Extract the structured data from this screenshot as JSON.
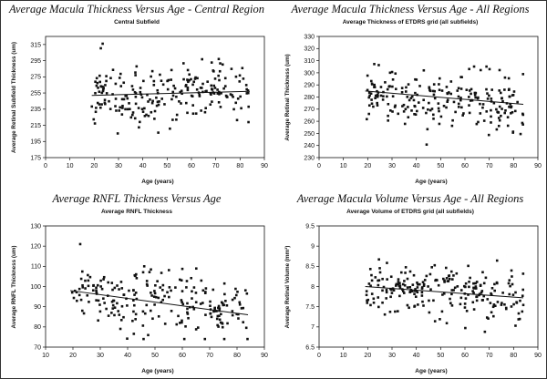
{
  "chart_data": [
    {
      "type": "scatter",
      "title": "Average Macula Thickness Versus Age - Central Region",
      "subtitle": "Central Subfield",
      "xlabel": "Age (years)",
      "ylabel": "Average Retinal Subfield Thickness (um)",
      "xlim": [
        0,
        90
      ],
      "ylim": [
        175,
        325
      ],
      "xticks": [
        "0",
        "10",
        "20",
        "30",
        "40",
        "50",
        "60",
        "70",
        "80",
        "90"
      ],
      "yticks": [
        "175",
        "195",
        "215",
        "235",
        "255",
        "275",
        "295",
        "315"
      ],
      "trend": {
        "x": [
          19,
          84
        ],
        "y": [
          252,
          257
        ]
      },
      "seed": 11,
      "n": 230,
      "spread": 19,
      "ymin": 200,
      "ymax": 316
    },
    {
      "type": "scatter",
      "title": "Average Macula Thickness Versus Age - All Regions",
      "subtitle": "Average Thickness of ETDRS grid (all subfields)",
      "xlabel": "Age (years)",
      "ylabel": "Average Retinal Thickness (um)",
      "xlim": [
        0,
        90
      ],
      "ylim": [
        230,
        330
      ],
      "xticks": [
        "0",
        "10",
        "20",
        "30",
        "40",
        "50",
        "60",
        "70",
        "80",
        "90"
      ],
      "yticks": [
        "230",
        "240",
        "250",
        "260",
        "270",
        "280",
        "290",
        "300",
        "310",
        "320",
        "330"
      ],
      "trend": {
        "x": [
          19,
          84
        ],
        "y": [
          285,
          274
        ]
      },
      "seed": 23,
      "n": 230,
      "spread": 11,
      "ymin": 240,
      "ymax": 314
    },
    {
      "type": "scatter",
      "title": "Average RNFL Thickness Versus Age",
      "subtitle": "Average RNFL Thickness",
      "xlabel": "Age (years)",
      "ylabel": "Average RNFL Thickness (um)",
      "xlim": [
        10,
        90
      ],
      "ylim": [
        70,
        130
      ],
      "xticks": [
        "10",
        "20",
        "30",
        "40",
        "50",
        "60",
        "70",
        "80",
        "90"
      ],
      "yticks": [
        "70",
        "80",
        "90",
        "100",
        "110",
        "120",
        "130"
      ],
      "trend": {
        "x": [
          19,
          84
        ],
        "y": [
          98,
          86
        ]
      },
      "seed": 37,
      "n": 230,
      "spread": 8,
      "ymin": 74,
      "ymax": 121
    },
    {
      "type": "scatter",
      "title": "Average Macula Volume Versus Age - All Regions",
      "subtitle": "Average Volume of ETDRS grid (all subfields)",
      "xlabel": "Age (years)",
      "ylabel": "Average Retinal Volume (mm³)",
      "xlim": [
        0,
        90
      ],
      "ylim": [
        6.5,
        9.5
      ],
      "xticks": [
        "0",
        "10",
        "20",
        "30",
        "40",
        "50",
        "60",
        "70",
        "80",
        "90"
      ],
      "yticks": [
        "6.5",
        "7",
        "7.5",
        "8",
        "8.5",
        "9",
        "9.5"
      ],
      "trend": {
        "x": [
          19,
          84
        ],
        "y": [
          8.0,
          7.72
        ]
      },
      "seed": 53,
      "n": 230,
      "spread": 0.32,
      "ymin": 6.75,
      "ymax": 8.9
    }
  ]
}
